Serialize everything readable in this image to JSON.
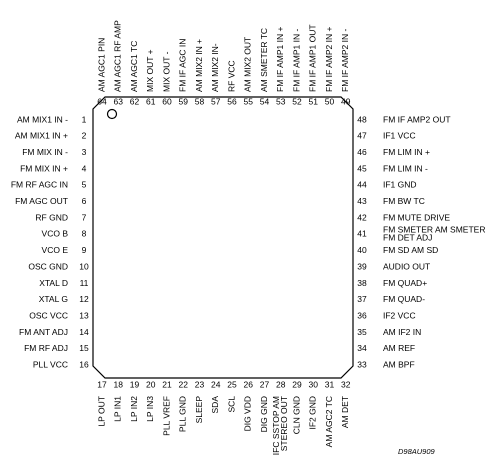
{
  "left_pins": [
    {
      "number": 1,
      "lines": [
        "AM MIX1 IN -"
      ]
    },
    {
      "number": 2,
      "lines": [
        "AM MIX1 IN +"
      ]
    },
    {
      "number": 3,
      "lines": [
        "FM MIX IN -"
      ]
    },
    {
      "number": 4,
      "lines": [
        "FM MIX IN +"
      ]
    },
    {
      "number": 5,
      "lines": [
        "FM RF AGC IN"
      ]
    },
    {
      "number": 6,
      "lines": [
        "FM AGC OUT"
      ]
    },
    {
      "number": 7,
      "lines": [
        "RF GND"
      ]
    },
    {
      "number": 8,
      "lines": [
        "VCO B"
      ]
    },
    {
      "number": 9,
      "lines": [
        "VCO E"
      ]
    },
    {
      "number": 10,
      "lines": [
        "OSC GND"
      ]
    },
    {
      "number": 11,
      "lines": [
        "XTAL D"
      ]
    },
    {
      "number": 12,
      "lines": [
        "XTAL G"
      ]
    },
    {
      "number": 13,
      "lines": [
        "OSC VCC"
      ]
    },
    {
      "number": 14,
      "lines": [
        "FM ANT ADJ"
      ]
    },
    {
      "number": 15,
      "lines": [
        "FM RF ADJ"
      ]
    },
    {
      "number": 16,
      "lines": [
        "PLL VCC"
      ]
    }
  ],
  "bottom_pins": [
    {
      "number": 17,
      "lines": [
        "LP OUT"
      ]
    },
    {
      "number": 18,
      "lines": [
        "LP IN1"
      ]
    },
    {
      "number": 19,
      "lines": [
        "LP IN2"
      ]
    },
    {
      "number": 20,
      "lines": [
        "LP IN3"
      ]
    },
    {
      "number": 21,
      "lines": [
        "PLL VREF"
      ]
    },
    {
      "number": 22,
      "lines": [
        "PLL GND"
      ]
    },
    {
      "number": 23,
      "lines": [
        "SLEEP"
      ]
    },
    {
      "number": 24,
      "lines": [
        "SDA"
      ]
    },
    {
      "number": 25,
      "lines": [
        "SCL"
      ]
    },
    {
      "number": 26,
      "lines": [
        "DIG VDD"
      ]
    },
    {
      "number": 27,
      "lines": [
        "DIG GND"
      ]
    },
    {
      "number": 28,
      "lines": [
        "IFC SSTOP AM",
        "STEREO OUT"
      ]
    },
    {
      "number": 29,
      "lines": [
        "CLN GND"
      ]
    },
    {
      "number": 30,
      "lines": [
        "IF2 GND"
      ]
    },
    {
      "number": 31,
      "lines": [
        "AM AGC2 TC"
      ]
    },
    {
      "number": 32,
      "lines": [
        "AM DET"
      ]
    }
  ],
  "right_pins": [
    {
      "number": 48,
      "lines": [
        "FM IF AMP2 OUT"
      ]
    },
    {
      "number": 47,
      "lines": [
        "IF1 VCC"
      ]
    },
    {
      "number": 46,
      "lines": [
        "FM LIM IN +"
      ]
    },
    {
      "number": 45,
      "lines": [
        "FM LIM IN -"
      ]
    },
    {
      "number": 44,
      "lines": [
        "IF1 GND"
      ]
    },
    {
      "number": 43,
      "lines": [
        "FM BW TC"
      ]
    },
    {
      "number": 42,
      "lines": [
        "FM MUTE DRIVE"
      ]
    },
    {
      "number": 41,
      "lines": [
        "FM SMETER AM SMETER",
        "FM DET ADJ"
      ]
    },
    {
      "number": 40,
      "lines": [
        "FM SD AM SD"
      ]
    },
    {
      "number": 39,
      "lines": [
        "AUDIO OUT"
      ]
    },
    {
      "number": 38,
      "lines": [
        "FM QUAD+"
      ]
    },
    {
      "number": 37,
      "lines": [
        "FM QUAD-"
      ]
    },
    {
      "number": 36,
      "lines": [
        "IF2 VCC"
      ]
    },
    {
      "number": 35,
      "lines": [
        "AM IF2 IN"
      ]
    },
    {
      "number": 34,
      "lines": [
        "AM REF"
      ]
    },
    {
      "number": 33,
      "lines": [
        "AM BPF"
      ]
    }
  ],
  "top_pins": [
    {
      "number": 64,
      "lines": [
        "AM AGC1 PIN"
      ]
    },
    {
      "number": 63,
      "lines": [
        "AM AGC1 RF AMP"
      ]
    },
    {
      "number": 62,
      "lines": [
        "AM AGC1 TC"
      ]
    },
    {
      "number": 61,
      "lines": [
        "MIX OUT +"
      ]
    },
    {
      "number": 60,
      "lines": [
        "MIX OUT -"
      ]
    },
    {
      "number": 59,
      "lines": [
        "FM IF AGC IN"
      ]
    },
    {
      "number": 58,
      "lines": [
        "AM MIX2 IN +"
      ]
    },
    {
      "number": 57,
      "lines": [
        "AM MIX2 IN-"
      ]
    },
    {
      "number": 56,
      "lines": [
        "RF VCC"
      ]
    },
    {
      "number": 55,
      "lines": [
        "AM MIX2 OUT"
      ]
    },
    {
      "number": 54,
      "lines": [
        "AM SMETER TC"
      ]
    },
    {
      "number": 53,
      "lines": [
        "FM IF AMP1 IN +"
      ]
    },
    {
      "number": 52,
      "lines": [
        "FM IF AMP1 IN -"
      ]
    },
    {
      "number": 51,
      "lines": [
        "FM IF AMP1 OUT"
      ]
    },
    {
      "number": 50,
      "lines": [
        "FM IF AMP2 IN +"
      ]
    },
    {
      "number": 49,
      "lines": [
        "FM IF AMP2 IN -"
      ]
    }
  ],
  "drawing_id": "D98AU909"
}
